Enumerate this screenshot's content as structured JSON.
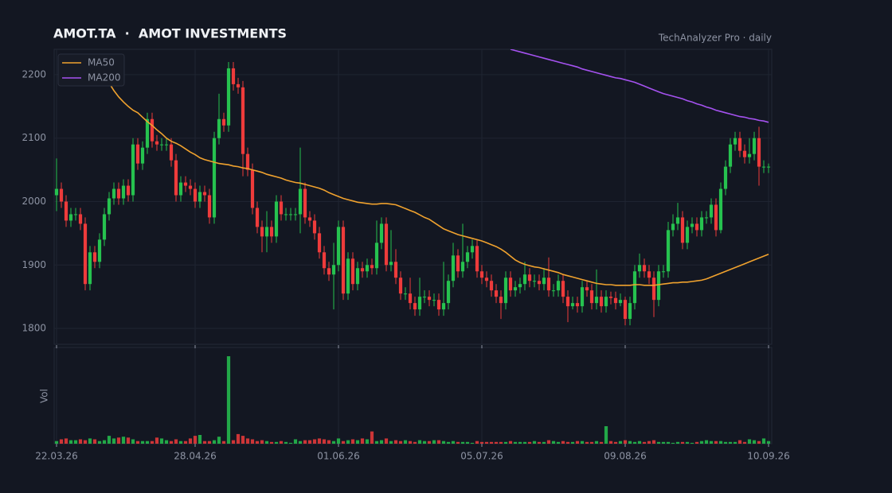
{
  "chart_data": {
    "type": "candlestick",
    "title": "AMOT.TA  ·  AMOT INVESTMENTS",
    "subtitle": "TechAnalyzer Pro · daily",
    "categories": [
      "22.03.26",
      null,
      null,
      null,
      null,
      null,
      null,
      null,
      null,
      null,
      null,
      null,
      null,
      null,
      null,
      null,
      null,
      null,
      null,
      null,
      null,
      null,
      null,
      null,
      null,
      null,
      null,
      null,
      null,
      "28.04.26",
      null,
      null,
      null,
      null,
      null,
      null,
      null,
      null,
      null,
      null,
      null,
      null,
      null,
      null,
      null,
      null,
      null,
      null,
      null,
      null,
      null,
      null,
      null,
      null,
      null,
      null,
      null,
      null,
      null,
      "01.06.26",
      null,
      null,
      null,
      null,
      null,
      null,
      null,
      null,
      null,
      null,
      null,
      null,
      null,
      null,
      null,
      null,
      null,
      null,
      null,
      null,
      null,
      null,
      null,
      null,
      null,
      null,
      null,
      null,
      null,
      "05.07.26",
      null,
      null,
      null,
      null,
      null,
      null,
      null,
      null,
      null,
      null,
      null,
      null,
      null,
      null,
      null,
      null,
      null,
      null,
      null,
      null,
      null,
      null,
      null,
      null,
      null,
      null,
      null,
      null,
      null,
      "09.08.26",
      null,
      null,
      null,
      null,
      null,
      null,
      null,
      null,
      null,
      null,
      null,
      null,
      null,
      null,
      null,
      null,
      null,
      null,
      null,
      null,
      null,
      null,
      null,
      null,
      null,
      null,
      null,
      null,
      null,
      "10.09.26"
    ],
    "open": [
      2010,
      2020,
      2000,
      1970,
      1980,
      1980,
      1965,
      1870,
      1920,
      1905,
      1940,
      1980,
      2005,
      2020,
      2005,
      2025,
      2010,
      2090,
      2060,
      2085,
      2130,
      2095,
      2090,
      2090,
      2090,
      2065,
      2010,
      2030,
      2025,
      2020,
      2000,
      2015,
      2010,
      1975,
      2100,
      2130,
      2120,
      2210,
      2185,
      2180,
      2075,
      2050,
      1990,
      1960,
      1945,
      1960,
      1945,
      2000,
      1980,
      1980,
      1980,
      1980,
      2020,
      1975,
      1970,
      1950,
      1920,
      1895,
      1885,
      1900,
      1960,
      1855,
      1910,
      1870,
      1895,
      1890,
      1900,
      1895,
      1935,
      1965,
      1900,
      1905,
      1880,
      1855,
      1855,
      1840,
      1830,
      1850,
      1850,
      1845,
      1845,
      1830,
      1840,
      1875,
      1915,
      1890,
      1905,
      1920,
      1930,
      1890,
      1880,
      1875,
      1860,
      1850,
      1840,
      1880,
      1860,
      1865,
      1870,
      1885,
      1875,
      1875,
      1870,
      1880,
      1860,
      1860,
      1875,
      1850,
      1835,
      1840,
      1835,
      1865,
      1860,
      1840,
      1850,
      1835,
      1850,
      1848,
      1840,
      1845,
      1815,
      1840,
      1890,
      1900,
      1890,
      1880,
      1845,
      1890,
      1890,
      1955,
      1965,
      1975,
      1935,
      1960,
      1965,
      1955,
      1975,
      1975,
      1995,
      1955,
      2020,
      2055,
      2090,
      2100,
      2080,
      2070,
      2075,
      2100,
      2055,
      2055
    ],
    "high": [
      2068,
      2030,
      2010,
      1990,
      1990,
      1990,
      1975,
      1930,
      1930,
      1950,
      1990,
      2015,
      2030,
      2030,
      2035,
      2035,
      2100,
      2100,
      2095,
      2140,
      2140,
      2105,
      2100,
      2100,
      2100,
      2075,
      2040,
      2040,
      2035,
      2030,
      2025,
      2025,
      2020,
      2110,
      2170,
      2140,
      2220,
      2220,
      2195,
      2190,
      2085,
      2060,
      2000,
      1970,
      1985,
      1970,
      2010,
      2010,
      1990,
      1990,
      1990,
      2085,
      2030,
      1985,
      1980,
      1960,
      1930,
      1905,
      1935,
      1970,
      1970,
      1920,
      1920,
      1905,
      1905,
      1910,
      1910,
      1970,
      1975,
      1975,
      1955,
      1925,
      1890,
      1865,
      1880,
      1850,
      1880,
      1860,
      1860,
      1855,
      1855,
      1905,
      1885,
      1935,
      1925,
      1965,
      1930,
      1940,
      1940,
      1900,
      1890,
      1885,
      1870,
      1860,
      1890,
      1890,
      1875,
      1880,
      1905,
      1895,
      1885,
      1885,
      1895,
      1912,
      1870,
      1885,
      1885,
      1860,
      1850,
      1850,
      1875,
      1875,
      1870,
      1893,
      1860,
      1860,
      1858,
      1858,
      1855,
      1850,
      1850,
      1900,
      1918,
      1910,
      1900,
      1890,
      1900,
      1900,
      1968,
      1980,
      1998,
      1985,
      1970,
      1975,
      1975,
      1985,
      1985,
      2005,
      2005,
      2030,
      2065,
      2100,
      2110,
      2110,
      2090,
      2100,
      2110,
      2118,
      2065,
      2060
    ],
    "low": [
      1985,
      1990,
      1960,
      1960,
      1970,
      1955,
      1860,
      1860,
      1895,
      1895,
      1930,
      1970,
      1995,
      1995,
      1995,
      2000,
      2000,
      2050,
      2050,
      2075,
      2085,
      2080,
      2080,
      2080,
      2055,
      2000,
      2000,
      2015,
      2010,
      1990,
      1990,
      2000,
      1965,
      1965,
      2090,
      2110,
      2110,
      2175,
      2170,
      2040,
      2040,
      1980,
      1950,
      1920,
      1920,
      1935,
      1935,
      1970,
      1970,
      1970,
      1970,
      1950,
      1965,
      1960,
      1940,
      1910,
      1885,
      1875,
      1830,
      1890,
      1845,
      1845,
      1860,
      1860,
      1880,
      1880,
      1885,
      1885,
      1925,
      1890,
      1890,
      1870,
      1845,
      1845,
      1830,
      1820,
      1820,
      1840,
      1835,
      1835,
      1820,
      1820,
      1830,
      1865,
      1880,
      1880,
      1895,
      1910,
      1880,
      1870,
      1865,
      1850,
      1840,
      1815,
      1830,
      1850,
      1850,
      1855,
      1860,
      1865,
      1865,
      1860,
      1860,
      1850,
      1850,
      1850,
      1840,
      1810,
      1830,
      1825,
      1825,
      1850,
      1830,
      1830,
      1825,
      1825,
      1838,
      1830,
      1835,
      1805,
      1805,
      1830,
      1880,
      1880,
      1870,
      1818,
      1835,
      1880,
      1880,
      1945,
      1955,
      1925,
      1925,
      1950,
      1945,
      1945,
      1965,
      1965,
      1945,
      1950,
      2010,
      2045,
      2080,
      2070,
      2060,
      2060,
      2065,
      2025,
      2045,
      2045
    ],
    "close": [
      2020,
      2000,
      1970,
      1980,
      1980,
      1965,
      1870,
      1920,
      1905,
      1940,
      1980,
      2005,
      2020,
      2005,
      2025,
      2010,
      2090,
      2060,
      2085,
      2130,
      2095,
      2090,
      2090,
      2090,
      2065,
      2010,
      2030,
      2025,
      2020,
      2000,
      2015,
      2010,
      1975,
      2100,
      2130,
      2120,
      2210,
      2185,
      2180,
      2075,
      2050,
      1990,
      1960,
      1945,
      1960,
      1945,
      2000,
      1980,
      1980,
      1980,
      1980,
      2020,
      1975,
      1970,
      1950,
      1920,
      1895,
      1885,
      1900,
      1960,
      1855,
      1910,
      1870,
      1895,
      1890,
      1900,
      1895,
      1935,
      1965,
      1900,
      1905,
      1880,
      1855,
      1855,
      1840,
      1830,
      1850,
      1850,
      1845,
      1845,
      1830,
      1840,
      1875,
      1915,
      1890,
      1905,
      1920,
      1930,
      1890,
      1880,
      1875,
      1860,
      1850,
      1840,
      1880,
      1860,
      1865,
      1870,
      1885,
      1875,
      1875,
      1870,
      1880,
      1860,
      1860,
      1875,
      1850,
      1835,
      1840,
      1835,
      1865,
      1860,
      1840,
      1850,
      1835,
      1850,
      1848,
      1840,
      1845,
      1815,
      1840,
      1890,
      1900,
      1890,
      1880,
      1845,
      1890,
      1890,
      1955,
      1965,
      1975,
      1935,
      1960,
      1965,
      1955,
      1975,
      1975,
      1995,
      1955,
      2020,
      2055,
      2090,
      2100,
      2080,
      2070,
      2075,
      2100,
      2055,
      2055,
      2055
    ],
    "up_color": "#26c24f",
    "down_color": "#ee3b3b",
    "ylim": [
      1775,
      2240
    ],
    "yticks": [
      1800,
      1900,
      2000,
      2100,
      2200
    ],
    "grid": true,
    "legend": "upper left",
    "series": [
      {
        "name": "MA50",
        "color": "#f0a22e",
        "values": [
          null,
          null,
          null,
          null,
          null,
          null,
          null,
          2232,
          2222,
          2210,
          2198,
          2187,
          2175,
          2165,
          2157,
          2150,
          2144,
          2140,
          2133,
          2126,
          2120,
          2113,
          2107,
          2100,
          2095,
          2092,
          2088,
          2083,
          2078,
          2074,
          2069,
          2066,
          2064,
          2062,
          2060,
          2059,
          2058,
          2056,
          2055,
          2053,
          2052,
          2050,
          2048,
          2046,
          2043,
          2041,
          2039,
          2037,
          2034,
          2032,
          2030,
          2029,
          2027,
          2025,
          2023,
          2021,
          2018,
          2014,
          2011,
          2008,
          2005,
          2003,
          2001,
          1999,
          1998,
          1997,
          1996,
          1996,
          1997,
          1997,
          1996,
          1995,
          1992,
          1989,
          1986,
          1983,
          1979,
          1975,
          1972,
          1967,
          1962,
          1957,
          1954,
          1951,
          1948,
          1946,
          1944,
          1942,
          1940,
          1938,
          1935,
          1932,
          1929,
          1925,
          1920,
          1914,
          1908,
          1904,
          1901,
          1899,
          1897,
          1896,
          1894,
          1892,
          1890,
          1888,
          1885,
          1883,
          1881,
          1879,
          1877,
          1875,
          1873,
          1871,
          1870,
          1869,
          1869,
          1868,
          1868,
          1868,
          1868,
          1869,
          1869,
          1868,
          1868,
          1868,
          1869,
          1870,
          1871,
          1872,
          1872,
          1873,
          1873,
          1874,
          1875,
          1876,
          1878,
          1881,
          1884,
          1887,
          1890,
          1893,
          1896,
          1899,
          1902,
          1905,
          1908,
          1911,
          1914,
          1917
        ]
      },
      {
        "name": "MA200",
        "color": "#a552f0",
        "values": [
          null,
          null,
          null,
          null,
          null,
          null,
          null,
          null,
          null,
          null,
          null,
          null,
          null,
          null,
          null,
          null,
          null,
          null,
          null,
          null,
          null,
          null,
          null,
          null,
          null,
          null,
          null,
          null,
          null,
          null,
          null,
          null,
          null,
          null,
          null,
          null,
          null,
          null,
          null,
          null,
          null,
          null,
          null,
          null,
          null,
          null,
          null,
          null,
          null,
          null,
          null,
          null,
          null,
          null,
          null,
          null,
          null,
          null,
          null,
          null,
          null,
          null,
          null,
          null,
          null,
          null,
          null,
          null,
          null,
          null,
          null,
          null,
          null,
          null,
          null,
          null,
          null,
          null,
          null,
          null,
          null,
          null,
          null,
          null,
          null,
          null,
          null,
          null,
          null,
          null,
          null,
          null,
          null,
          null,
          null,
          2240,
          2238,
          2236,
          2234,
          2232,
          2230,
          2228,
          2226,
          2224,
          2222,
          2220,
          2218,
          2216,
          2214,
          2212,
          2209,
          2207,
          2205,
          2203,
          2201,
          2199,
          2197,
          2195,
          2194,
          2192,
          2190,
          2188,
          2185,
          2182,
          2179,
          2176,
          2173,
          2170,
          2168,
          2166,
          2164,
          2162,
          2159,
          2157,
          2154,
          2152,
          2149,
          2147,
          2144,
          2142,
          2140,
          2138,
          2136,
          2134,
          2133,
          2131,
          2130,
          2128,
          2127,
          2125
        ]
      }
    ],
    "volume": {
      "label": "Vol",
      "ylim": [
        0,
        110
      ],
      "values": [
        3,
        5,
        6,
        4,
        4,
        5,
        4,
        6,
        5,
        3,
        4,
        9,
        6,
        7,
        8,
        7,
        5,
        3,
        3,
        3,
        3,
        7,
        6,
        4,
        3,
        5,
        3,
        3,
        6,
        9,
        10,
        3,
        3,
        4,
        8,
        3,
        100,
        4,
        11,
        9,
        6,
        5,
        3,
        4,
        3,
        2,
        2,
        3,
        2,
        1,
        5,
        3,
        4,
        4,
        5,
        6,
        5,
        4,
        3,
        6,
        3,
        4,
        5,
        4,
        6,
        5,
        14,
        3,
        4,
        6,
        3,
        4,
        3,
        4,
        3,
        2,
        4,
        3,
        3,
        4,
        4,
        3,
        2,
        3,
        2,
        2,
        2,
        1,
        3,
        2,
        2,
        2,
        2,
        2,
        2,
        3,
        2,
        2,
        2,
        2,
        3,
        2,
        2,
        4,
        3,
        2,
        3,
        2,
        2,
        3,
        3,
        2,
        2,
        3,
        2,
        20,
        3,
        2,
        3,
        4,
        3,
        2,
        3,
        2,
        3,
        4,
        2,
        2,
        2,
        1,
        2,
        2,
        2,
        1,
        2,
        3,
        4,
        3,
        3,
        3,
        2,
        2,
        2,
        4,
        2,
        5,
        4,
        3,
        6,
        3
      ]
    }
  }
}
